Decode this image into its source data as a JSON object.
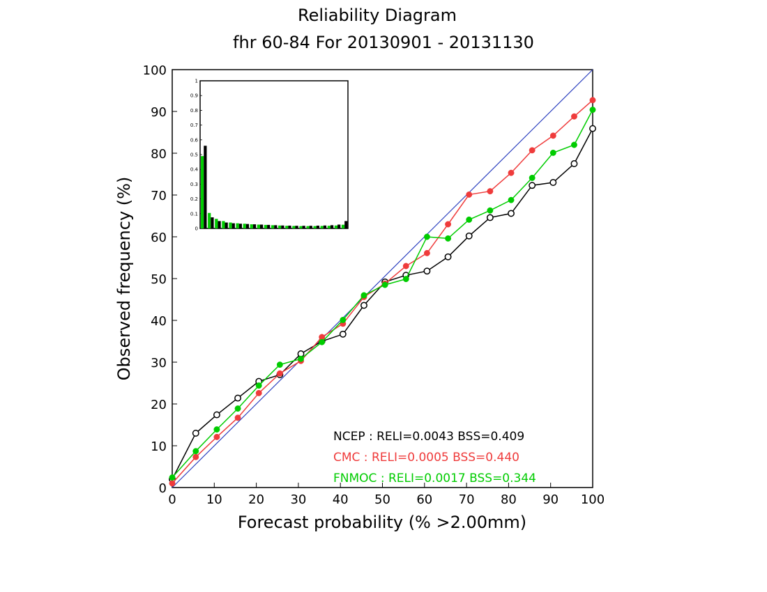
{
  "chart_data": {
    "type": "line",
    "title": "Reliability Diagram",
    "subtitle": "fhr 60-84 For 20130901 - 20131130",
    "xlabel": "Forecast probability (% >2.00mm)",
    "ylabel": "Observed frequency (%)",
    "xlim": [
      0,
      100
    ],
    "ylim": [
      0,
      100
    ],
    "xticks": [
      0,
      10,
      20,
      30,
      40,
      50,
      60,
      70,
      80,
      90,
      100
    ],
    "yticks": [
      0,
      10,
      20,
      30,
      40,
      50,
      60,
      70,
      80,
      90,
      100
    ],
    "diagonal_color": "#2b3fbf",
    "x": [
      0,
      5.6,
      10.6,
      15.6,
      20.6,
      25.6,
      30.6,
      35.6,
      40.6,
      45.6,
      50.6,
      55.6,
      60.6,
      65.6,
      70.6,
      75.6,
      80.6,
      85.6,
      90.6,
      95.6,
      100
    ],
    "series": [
      {
        "name": "NCEP",
        "color": "#000000",
        "marker": "open-circle",
        "values": [
          2.0,
          13.0,
          17.4,
          21.4,
          25.4,
          27.0,
          32.0,
          35.0,
          36.7,
          43.6,
          49.2,
          50.8,
          51.8,
          55.2,
          60.2,
          64.6,
          65.6,
          72.3,
          73.0,
          77.5,
          85.9
        ],
        "legend_text": "NCEP       : RELI=0.0043  BSS=0.409"
      },
      {
        "name": "CMC",
        "color": "#ef3b3b",
        "marker": "filled-circle",
        "values": [
          1.0,
          7.3,
          12.1,
          16.7,
          22.6,
          27.3,
          30.3,
          36.0,
          39.2,
          45.6,
          48.8,
          53.0,
          56.1,
          63.0,
          70.1,
          70.9,
          75.3,
          80.7,
          84.2,
          88.8,
          92.7
        ],
        "legend_text": "CMC       : RELI=0.0005  BSS=0.440"
      },
      {
        "name": "FNMOC",
        "color": "#00cc00",
        "marker": "filled-circle",
        "values": [
          2.4,
          8.7,
          13.9,
          18.9,
          24.4,
          29.4,
          30.8,
          34.8,
          40.1,
          46.0,
          48.5,
          49.9,
          60.0,
          59.6,
          64.1,
          66.3,
          68.8,
          74.1,
          80.1,
          82.0,
          90.4
        ],
        "legend_text": "FNMOC  : RELI=0.0017  BSS=0.344"
      }
    ],
    "inset": {
      "type": "bar",
      "ylim": [
        0,
        1
      ],
      "yticks": [
        "0",
        "0.1",
        "0.2",
        "0.3",
        "0.4",
        "0.5",
        "0.6",
        "0.7",
        "0.8",
        "0.9",
        "1"
      ],
      "bins": 21,
      "series": [
        {
          "name": "FNMOC",
          "color": "#00cc00",
          "values": [
            0.49,
            0.105,
            0.065,
            0.05,
            0.04,
            0.035,
            0.032,
            0.028,
            0.026,
            0.024,
            0.022,
            0.02,
            0.018,
            0.017,
            0.016,
            0.016,
            0.016,
            0.017,
            0.018,
            0.02,
            0.025
          ]
        },
        {
          "name": "NCEP",
          "color": "#000000",
          "values": [
            0.56,
            0.075,
            0.05,
            0.04,
            0.035,
            0.032,
            0.03,
            0.028,
            0.026,
            0.024,
            0.022,
            0.02,
            0.019,
            0.018,
            0.018,
            0.018,
            0.019,
            0.02,
            0.022,
            0.026,
            0.05
          ]
        }
      ]
    }
  }
}
